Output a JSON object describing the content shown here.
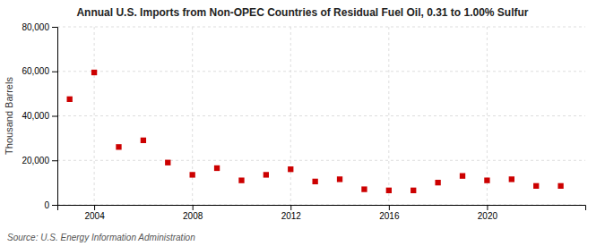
{
  "chart_data": {
    "type": "scatter",
    "title": "Annual U.S. Imports from Non-OPEC Countries of Residual Fuel Oil, 0.31 to 1.00% Sulfur",
    "ylabel": "Thousand Barrels",
    "annotations": [
      "Source: U.S. Energy Information Administration"
    ],
    "x": [
      2003,
      2004,
      2005,
      2006,
      2007,
      2008,
      2009,
      2010,
      2011,
      2012,
      2013,
      2014,
      2015,
      2016,
      2017,
      2018,
      2019,
      2020,
      2021,
      2022,
      2023
    ],
    "values": [
      47500,
      59500,
      26000,
      29000,
      19000,
      13500,
      16500,
      11000,
      13500,
      16000,
      10500,
      11500,
      7000,
      6500,
      6500,
      10000,
      13000,
      11000,
      11500,
      8500,
      8500
    ],
    "color": "#cc0000",
    "marker": "square",
    "xlim": [
      2002.5,
      2024.0
    ],
    "xticks": [
      2004,
      2008,
      2012,
      2016,
      2020
    ],
    "ylim": [
      0,
      80000
    ],
    "yticks": [
      0,
      {
        "value": 20000,
        "label": "20,000"
      },
      {
        "value": 40000,
        "label": "40,000"
      },
      {
        "value": 60000,
        "label": "60,000"
      },
      {
        "value": 80000,
        "label": "80,000"
      }
    ],
    "grid": true
  }
}
